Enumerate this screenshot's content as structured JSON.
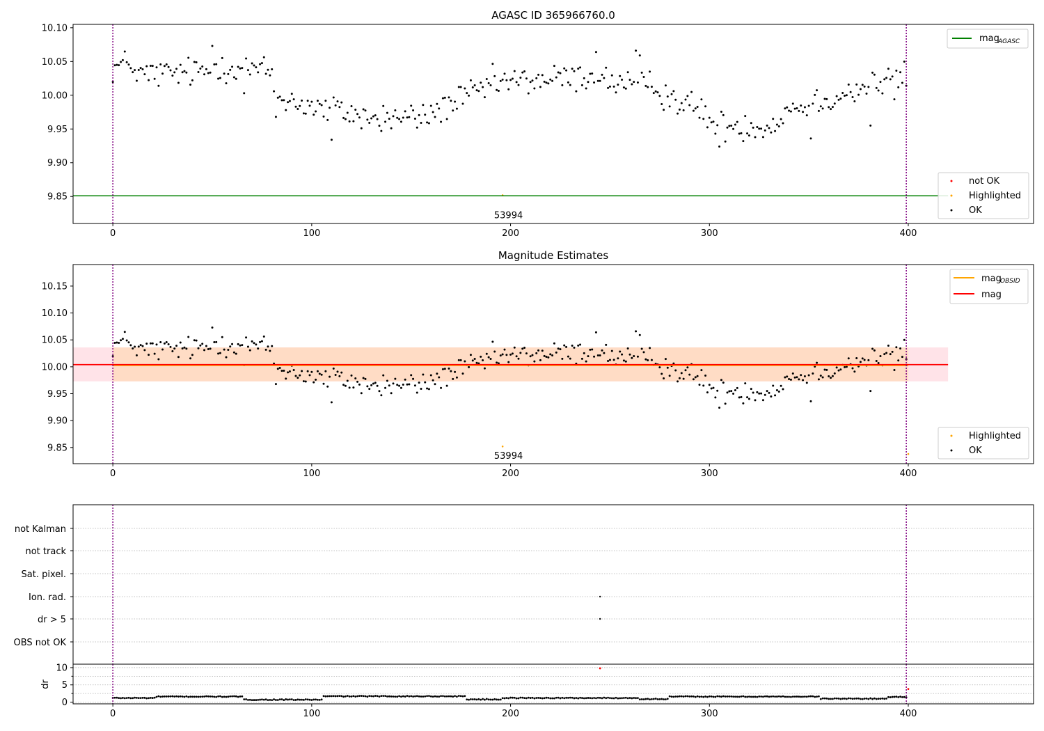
{
  "colors": {
    "ok": "#000000",
    "not_ok": "#ff0000",
    "highlighted": "#ffa500",
    "mag_agasc": "#008000",
    "mag_obsid": "#ffa500",
    "mag": "#ff0000",
    "obs_marker": "#800080",
    "band_mag": "#ffc0cb",
    "band_obsid": "#ffdab9",
    "grid": "#b0b0b0"
  },
  "chart_data": [
    {
      "type": "scatter",
      "title": "AGASC ID 365966760.0",
      "xlabel": "",
      "ylabel": "",
      "xlim": [
        -20,
        463
      ],
      "ylim": [
        9.81,
        10.105
      ],
      "x_ticks": [
        "0",
        "100",
        "200",
        "300",
        "400"
      ],
      "y_ticks": [
        "9.85",
        "9.90",
        "9.95",
        "10.00",
        "10.05",
        "10.10"
      ],
      "vertical_lines": [
        0,
        399
      ],
      "obsid_label": {
        "text": "53994",
        "x": 200,
        "y": 9.822
      },
      "legends": {
        "upper_right": [
          "mag",
          "AGASC"
        ],
        "lower_right": [
          "not OK",
          "Highlighted",
          "OK"
        ]
      },
      "reference_lines": [
        {
          "name": "mag_AGASC",
          "y": 9.851,
          "x_range": [
            -20,
            420
          ]
        }
      ],
      "highlighted_points": [
        {
          "x": 196,
          "y": 9.852
        }
      ],
      "series": [
        {
          "name": "OK",
          "style": "points",
          "source": "magnitude_samples"
        }
      ]
    },
    {
      "type": "scatter",
      "title": "Magnitude Estimates",
      "xlabel": "",
      "ylabel": "",
      "xlim": [
        -20,
        463
      ],
      "ylim": [
        9.82,
        10.19
      ],
      "x_ticks": [
        "0",
        "100",
        "200",
        "300",
        "400"
      ],
      "y_ticks": [
        "9.85",
        "9.90",
        "9.95",
        "10.00",
        "10.05",
        "10.10",
        "10.15"
      ],
      "vertical_lines": [
        0,
        399
      ],
      "obsid_label": {
        "text": "53994",
        "x": 200,
        "y": 9.834
      },
      "legends": {
        "upper_right": [
          "mag",
          "OBSID",
          "mag"
        ],
        "lower_right": [
          "Highlighted",
          "OK"
        ]
      },
      "bands": [
        {
          "name": "mag",
          "y_range": [
            9.973,
            10.036
          ],
          "x_range": [
            -20,
            420
          ]
        },
        {
          "name": "mag_OBSID",
          "y_range": [
            9.973,
            10.036
          ],
          "x_range": [
            0,
            400
          ]
        }
      ],
      "reference_lines": [
        {
          "name": "mag_OBSID",
          "y": 10.004,
          "x_range": [
            0,
            400
          ]
        },
        {
          "name": "mag",
          "y": 10.004,
          "x_range": [
            -20,
            420
          ]
        }
      ],
      "highlighted_points": [
        {
          "x": 196,
          "y": 9.852
        },
        {
          "x": 400,
          "y": 9.838
        }
      ],
      "series": [
        {
          "name": "OK",
          "style": "points",
          "source": "magnitude_samples"
        }
      ]
    },
    {
      "type": "scatter",
      "title": "",
      "xlabel": "",
      "ylabel": "",
      "xlim": [
        -20,
        463
      ],
      "categories": [
        "not Kalman",
        "not track",
        "Sat. pixel.",
        "Ion. rad.",
        "dr > 5",
        "OBS not OK"
      ],
      "flagged_points": [
        {
          "category": "Ion. rad.",
          "x": 245
        },
        {
          "category": "dr > 5",
          "x": 245
        }
      ],
      "vertical_lines": [
        0,
        399
      ]
    },
    {
      "type": "scatter",
      "title": "",
      "xlabel": "",
      "ylabel": "dr",
      "xlim": [
        -20,
        463
      ],
      "ylim": [
        -0.5,
        11
      ],
      "x_ticks": [
        "0",
        "100",
        "200",
        "300",
        "400"
      ],
      "y_ticks": [
        "0",
        "5",
        "10"
      ],
      "vertical_lines": [
        0,
        399
      ],
      "not_ok_points": [
        {
          "x": 245,
          "y": 9.8
        },
        {
          "x": 400,
          "y": 3.8
        }
      ],
      "segments": [
        {
          "x": [
            0,
            22
          ],
          "y": 1.2
        },
        {
          "x": [
            22,
            66
          ],
          "y": 1.6
        },
        {
          "x": [
            66,
            106
          ],
          "y": 0.7
        },
        {
          "x": [
            106,
            178
          ],
          "y": 1.7
        },
        {
          "x": [
            178,
            196
          ],
          "y": 0.8
        },
        {
          "x": [
            196,
            265
          ],
          "y": 1.2
        },
        {
          "x": [
            265,
            280
          ],
          "y": 0.9
        },
        {
          "x": [
            280,
            356
          ],
          "y": 1.6
        },
        {
          "x": [
            356,
            390
          ],
          "y": 1.0
        },
        {
          "x": [
            390,
            400
          ],
          "y": 1.5
        }
      ]
    }
  ],
  "magnitude_samples": {
    "x_range": [
      0,
      399
    ],
    "segments": [
      {
        "x": [
          0,
          10
        ],
        "y": [
          10.04,
          10.05
        ]
      },
      {
        "x": [
          10,
          50
        ],
        "y": [
          10.03,
          10.035
        ]
      },
      {
        "x": [
          50,
          80
        ],
        "y": [
          10.045,
          10.035
        ]
      },
      {
        "x": [
          80,
          110
        ],
        "y": [
          10.0,
          9.975
        ]
      },
      {
        "x": [
          110,
          135
        ],
        "y": [
          9.98,
          9.962
        ]
      },
      {
        "x": [
          135,
          160
        ],
        "y": [
          9.966,
          9.968
        ]
      },
      {
        "x": [
          160,
          190
        ],
        "y": [
          9.974,
          10.014
        ]
      },
      {
        "x": [
          190,
          245
        ],
        "y": [
          10.018,
          10.028
        ]
      },
      {
        "x": [
          245,
          275
        ],
        "y": [
          10.022,
          10.012
        ]
      },
      {
        "x": [
          275,
          300
        ],
        "y": [
          10.005,
          9.97
        ]
      },
      {
        "x": [
          300,
          335
        ],
        "y": [
          9.955,
          9.955
        ]
      },
      {
        "x": [
          335,
          365
        ],
        "y": [
          9.975,
          10.0
        ]
      },
      {
        "x": [
          365,
          399
        ],
        "y": [
          10.0,
          10.028
        ]
      }
    ],
    "outliers": [
      {
        "x": 50,
        "y": 10.073
      },
      {
        "x": 110,
        "y": 9.934
      },
      {
        "x": 243,
        "y": 10.064
      },
      {
        "x": 263,
        "y": 10.066
      },
      {
        "x": 265,
        "y": 10.059
      },
      {
        "x": 305,
        "y": 9.924
      },
      {
        "x": 351,
        "y": 9.936
      },
      {
        "x": 381,
        "y": 9.955
      },
      {
        "x": 82,
        "y": 9.968
      },
      {
        "x": 66,
        "y": 10.003
      },
      {
        "x": 393,
        "y": 9.994
      }
    ]
  }
}
